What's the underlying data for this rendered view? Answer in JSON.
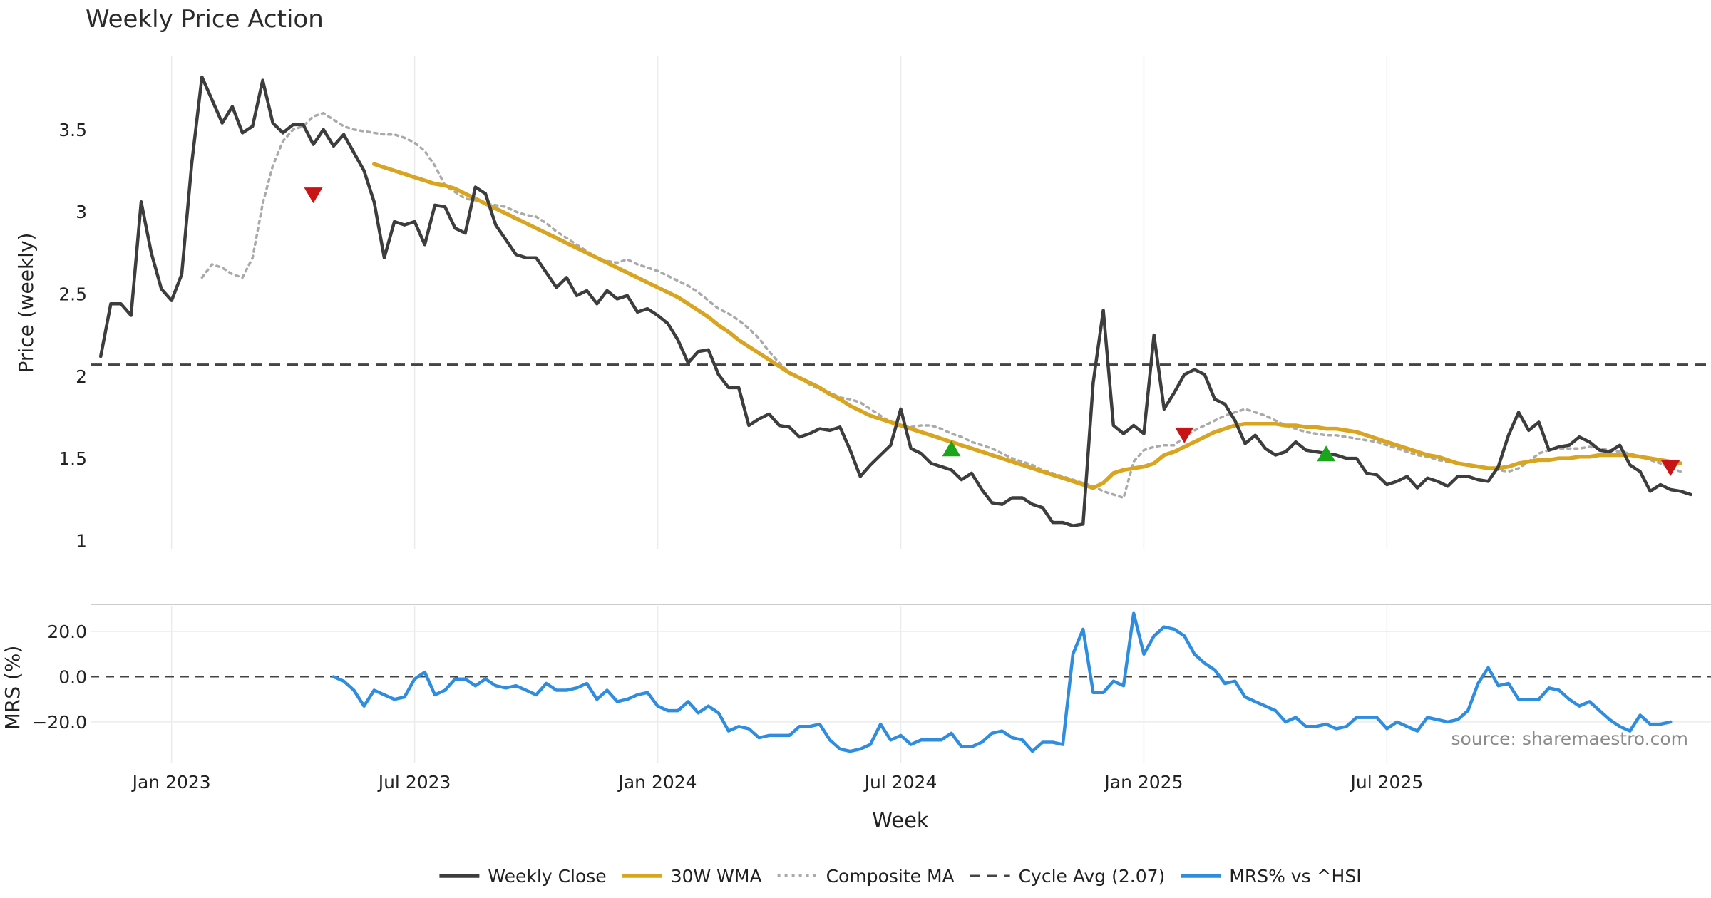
{
  "chart_data": {
    "type": "line",
    "title": "Weekly Price Action",
    "xlabel": "Week",
    "source": "source: sharemaestro.com",
    "x_ticks": [
      "Jan 2023",
      "Jul 2023",
      "Jan 2024",
      "Jul 2024",
      "Jan 2025",
      "Jul 2025"
    ],
    "x_range_weeks": [
      -8,
      152
    ],
    "x_tick_weeks": [
      0,
      24,
      48,
      72,
      96,
      120
    ],
    "colors": {
      "weekly_close": "#3d3d3d",
      "wma": "#d9a521",
      "composite": "#aaaaaa",
      "cycle": "#444444",
      "mrs": "#2f8de0",
      "buy": "#1aa51a",
      "sell": "#c81414"
    },
    "price_panel": {
      "ylabel": "Price (weekly)",
      "ylim": [
        0.95,
        3.95
      ],
      "y_ticks": [
        "1",
        "1.5",
        "2",
        "2.5",
        "3",
        "3.5"
      ],
      "y_tick_values": [
        1,
        1.5,
        2,
        2.5,
        3,
        3.5
      ],
      "cycle_avg": 2.07,
      "series": [
        {
          "name": "Weekly Close",
          "start_week": -7,
          "values": [
            2.12,
            2.44,
            2.44,
            2.37,
            3.06,
            2.75,
            2.53,
            2.46,
            2.62,
            3.3,
            3.82,
            3.68,
            3.54,
            3.64,
            3.48,
            3.52,
            3.8,
            3.54,
            3.48,
            3.53,
            3.53,
            3.41,
            3.5,
            3.4,
            3.47,
            3.36,
            3.25,
            3.06,
            2.72,
            2.94,
            2.92,
            2.94,
            2.8,
            3.04,
            3.03,
            2.9,
            2.87,
            3.15,
            3.11,
            2.92,
            2.83,
            2.74,
            2.72,
            2.72,
            2.63,
            2.54,
            2.6,
            2.49,
            2.52,
            2.44,
            2.52,
            2.47,
            2.49,
            2.39,
            2.41,
            2.37,
            2.32,
            2.22,
            2.08,
            2.15,
            2.16,
            2.01,
            1.93,
            1.93,
            1.7,
            1.74,
            1.77,
            1.7,
            1.69,
            1.63,
            1.65,
            1.68,
            1.67,
            1.69,
            1.55,
            1.39,
            1.46,
            1.52,
            1.58,
            1.8,
            1.56,
            1.53,
            1.47,
            1.45,
            1.43,
            1.37,
            1.41,
            1.31,
            1.23,
            1.22,
            1.26,
            1.26,
            1.22,
            1.2,
            1.11,
            1.11,
            1.09,
            1.1,
            1.96,
            2.4,
            1.7,
            1.65,
            1.7,
            1.65,
            2.25,
            1.8,
            1.9,
            2.01,
            2.04,
            2.01,
            1.86,
            1.83,
            1.73,
            1.59,
            1.64,
            1.56,
            1.52,
            1.54,
            1.6,
            1.55,
            1.54,
            1.53,
            1.52,
            1.5,
            1.5,
            1.41,
            1.4,
            1.34,
            1.36,
            1.39,
            1.32,
            1.38,
            1.36,
            1.33,
            1.39,
            1.39,
            1.37,
            1.36,
            1.45,
            1.64,
            1.78,
            1.67,
            1.72,
            1.55,
            1.57,
            1.58,
            1.63,
            1.6,
            1.55,
            1.54,
            1.58,
            1.46,
            1.42,
            1.3,
            1.34,
            1.31,
            1.3,
            1.28
          ]
        },
        {
          "name": "30W WMA",
          "start_week": 20,
          "values": [
            3.29,
            3.27,
            3.25,
            3.23,
            3.21,
            3.19,
            3.17,
            3.16,
            3.14,
            3.11,
            3.08,
            3.05,
            3.02,
            2.99,
            2.96,
            2.93,
            2.9,
            2.87,
            2.84,
            2.81,
            2.78,
            2.75,
            2.72,
            2.69,
            2.66,
            2.63,
            2.6,
            2.57,
            2.54,
            2.51,
            2.48,
            2.44,
            2.4,
            2.36,
            2.31,
            2.27,
            2.22,
            2.18,
            2.14,
            2.1,
            2.06,
            2.02,
            1.99,
            1.96,
            1.93,
            1.89,
            1.86,
            1.82,
            1.79,
            1.76,
            1.74,
            1.72,
            1.7,
            1.68,
            1.66,
            1.64,
            1.62,
            1.6,
            1.58,
            1.56,
            1.54,
            1.52,
            1.5,
            1.48,
            1.46,
            1.44,
            1.42,
            1.4,
            1.38,
            1.36,
            1.34,
            1.32,
            1.35,
            1.41,
            1.43,
            1.44,
            1.45,
            1.47,
            1.52,
            1.54,
            1.57,
            1.6,
            1.63,
            1.66,
            1.68,
            1.7,
            1.71,
            1.71,
            1.71,
            1.71,
            1.7,
            1.7,
            1.69,
            1.69,
            1.68,
            1.68,
            1.67,
            1.66,
            1.64,
            1.62,
            1.6,
            1.58,
            1.56,
            1.54,
            1.52,
            1.51,
            1.49,
            1.47,
            1.46,
            1.45,
            1.44,
            1.44,
            1.45,
            1.47,
            1.48,
            1.49,
            1.49,
            1.5,
            1.5,
            1.51,
            1.51,
            1.52,
            1.52,
            1.52,
            1.52,
            1.51,
            1.5,
            1.49,
            1.48,
            1.47
          ]
        },
        {
          "name": "Composite MA",
          "start_week": 3,
          "values": [
            2.6,
            2.68,
            2.66,
            2.62,
            2.6,
            2.72,
            3.05,
            3.28,
            3.43,
            3.5,
            3.52,
            3.58,
            3.6,
            3.56,
            3.52,
            3.5,
            3.49,
            3.48,
            3.47,
            3.47,
            3.45,
            3.42,
            3.37,
            3.28,
            3.16,
            3.12,
            3.08,
            3.07,
            3.05,
            3.04,
            3.03,
            3.0,
            2.98,
            2.97,
            2.93,
            2.88,
            2.84,
            2.8,
            2.76,
            2.72,
            2.7,
            2.69,
            2.71,
            2.68,
            2.66,
            2.64,
            2.61,
            2.58,
            2.55,
            2.51,
            2.46,
            2.41,
            2.38,
            2.34,
            2.29,
            2.23,
            2.15,
            2.08,
            2.02,
            1.99,
            1.95,
            1.92,
            1.9,
            1.87,
            1.86,
            1.84,
            1.8,
            1.76,
            1.72,
            1.7,
            1.69,
            1.7,
            1.7,
            1.68,
            1.65,
            1.63,
            1.6,
            1.58,
            1.56,
            1.53,
            1.5,
            1.48,
            1.46,
            1.43,
            1.41,
            1.39,
            1.37,
            1.35,
            1.33,
            1.3,
            1.28,
            1.26,
            1.48,
            1.55,
            1.57,
            1.58,
            1.58,
            1.63,
            1.67,
            1.7,
            1.73,
            1.76,
            1.78,
            1.8,
            1.78,
            1.76,
            1.73,
            1.7,
            1.68,
            1.66,
            1.65,
            1.64,
            1.64,
            1.63,
            1.62,
            1.61,
            1.6,
            1.58,
            1.56,
            1.54,
            1.52,
            1.51,
            1.49,
            1.48,
            1.47,
            1.46,
            1.45,
            1.44,
            1.43,
            1.42,
            1.44,
            1.48,
            1.53,
            1.55,
            1.56,
            1.56,
            1.56,
            1.57,
            1.56,
            1.55,
            1.54,
            1.53,
            1.51,
            1.49,
            1.47,
            1.44,
            1.42
          ]
        }
      ],
      "buy_signals": [
        {
          "week": 77,
          "value": 1.56
        },
        {
          "week": 114,
          "value": 1.53
        }
      ],
      "sell_signals": [
        {
          "week": 14,
          "value": 3.1
        },
        {
          "week": 100,
          "value": 1.64
        },
        {
          "week": 148,
          "value": 1.44
        }
      ]
    },
    "mrs_panel": {
      "ylabel": "MRS (%)",
      "ylim": [
        -38,
        32
      ],
      "y_ticks": [
        "20.0",
        "0.0",
        "−20.0"
      ],
      "y_tick_values": [
        20,
        0,
        -20
      ],
      "zero_line": 0,
      "series": [
        {
          "name": "MRS% vs ^HSI",
          "start_week": 16,
          "values": [
            0,
            -2,
            -6,
            -13,
            -6,
            -8,
            -10,
            -9,
            -1,
            2,
            -8,
            -6,
            -1,
            -1,
            -4,
            -1,
            -4,
            -5,
            -4,
            -6,
            -8,
            -3,
            -6,
            -6,
            -5,
            -3,
            -10,
            -6,
            -11,
            -10,
            -8,
            -7,
            -13,
            -15,
            -15,
            -11,
            -16,
            -13,
            -16,
            -24,
            -22,
            -23,
            -27,
            -26,
            -26,
            -26,
            -22,
            -22,
            -21,
            -28,
            -32,
            -33,
            -32,
            -30,
            -21,
            -28,
            -26,
            -30,
            -28,
            -28,
            -28,
            -25,
            -31,
            -31,
            -29,
            -25,
            -24,
            -27,
            -28,
            -33,
            -29,
            -29,
            -30,
            10,
            21,
            -7,
            -7,
            -2,
            -4,
            28,
            10,
            18,
            22,
            21,
            18,
            10,
            6,
            3,
            -3,
            -2,
            -9,
            -11,
            -13,
            -15,
            -20,
            -18,
            -22,
            -22,
            -21,
            -23,
            -22,
            -18,
            -18,
            -18,
            -23,
            -20,
            -22,
            -24,
            -18,
            -19,
            -20,
            -19,
            -15,
            -3,
            4,
            -4,
            -3,
            -10,
            -10,
            -10,
            -5,
            -6,
            -10,
            -13,
            -11,
            -15,
            -19,
            -22,
            -24,
            -17,
            -21,
            -21,
            -20
          ]
        }
      ]
    },
    "legend": {
      "placement": "bottom-center",
      "entries": [
        {
          "label": "Weekly Close",
          "style": "solid",
          "color": "#3d3d3d"
        },
        {
          "label": "30W WMA",
          "style": "solid",
          "color": "#d9a521"
        },
        {
          "label": "Composite MA",
          "style": "dotted",
          "color": "#aaaaaa"
        },
        {
          "label": "Cycle Avg (2.07)",
          "style": "dashed",
          "color": "#444444"
        },
        {
          "label": "MRS% vs ^HSI",
          "style": "solid",
          "color": "#2f8de0"
        }
      ]
    }
  }
}
